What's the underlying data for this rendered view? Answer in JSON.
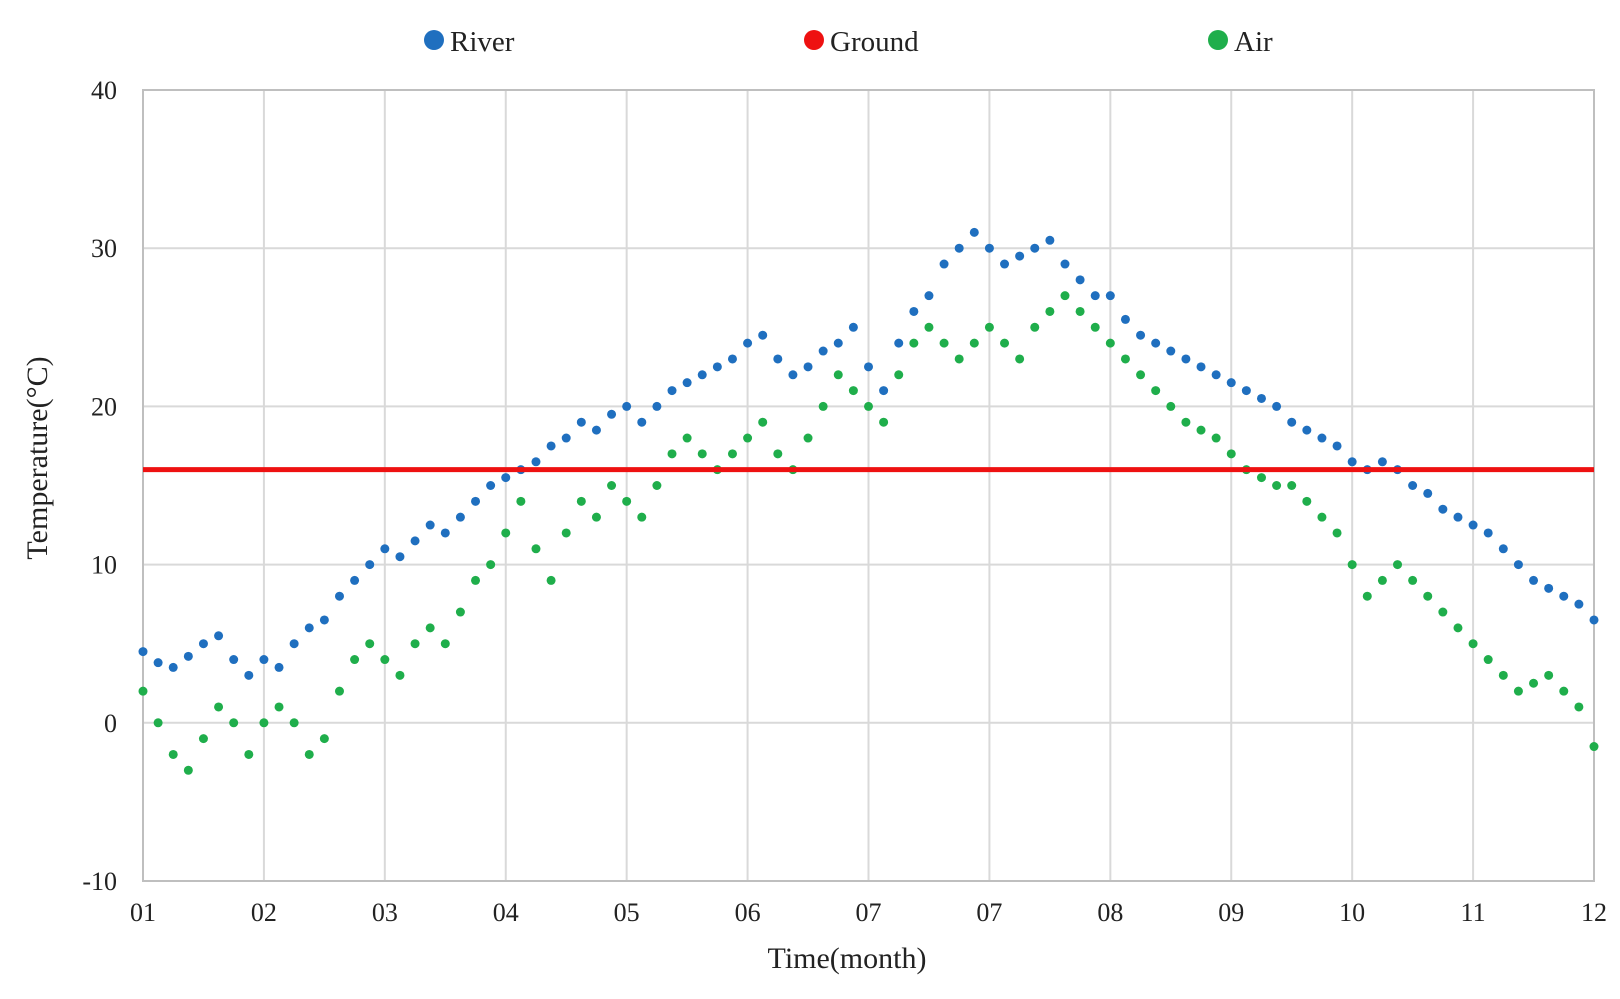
{
  "colors": {
    "river": "#1f6fbf",
    "ground": "#ee1111",
    "air": "#1fae4b",
    "grid": "#d9d9d9",
    "axis": "#bfbfbf"
  },
  "chart_data": {
    "type": "scatter",
    "title": "",
    "xlabel": "Time(month)",
    "ylabel": "Temperature(°C)",
    "xlim": [
      0,
      12
    ],
    "ylim": [
      -10,
      40
    ],
    "grid": true,
    "legend_position": "top-center",
    "x_ticks": [
      {
        "value": 0,
        "label": "01"
      },
      {
        "value": 1,
        "label": "02"
      },
      {
        "value": 2,
        "label": "03"
      },
      {
        "value": 3,
        "label": "04"
      },
      {
        "value": 4,
        "label": "05"
      },
      {
        "value": 5,
        "label": "06"
      },
      {
        "value": 6,
        "label": "07"
      },
      {
        "value": 7,
        "label": "07"
      },
      {
        "value": 8,
        "label": "08"
      },
      {
        "value": 9,
        "label": "09"
      },
      {
        "value": 10,
        "label": "10"
      },
      {
        "value": 11,
        "label": "11"
      },
      {
        "value": 12,
        "label": "12"
      }
    ],
    "y_ticks": [
      {
        "value": 40,
        "label": "40"
      },
      {
        "value": 30,
        "label": "30"
      },
      {
        "value": 20,
        "label": "20"
      },
      {
        "value": 10,
        "label": "10"
      },
      {
        "value": 0,
        "label": "0"
      },
      {
        "value": -10,
        "label": "-10"
      }
    ],
    "series": [
      {
        "name": "River",
        "kind": "points",
        "x": [
          0.0,
          0.125,
          0.25,
          0.375,
          0.5,
          0.625,
          0.75,
          0.875,
          1.0,
          1.125,
          1.25,
          1.375,
          1.5,
          1.625,
          1.75,
          1.875,
          2.0,
          2.125,
          2.25,
          2.375,
          2.5,
          2.625,
          2.75,
          2.875,
          3.0,
          3.125,
          3.25,
          3.375,
          3.5,
          3.625,
          3.75,
          3.875,
          4.0,
          4.125,
          4.25,
          4.375,
          4.5,
          4.625,
          4.75,
          4.875,
          5.0,
          5.125,
          5.25,
          5.375,
          5.5,
          5.625,
          5.75,
          5.875,
          6.0,
          6.125,
          6.25,
          6.375,
          6.5,
          6.625,
          6.75,
          6.875,
          7.0,
          7.125,
          7.25,
          7.375,
          7.5,
          7.625,
          7.75,
          7.875,
          8.0,
          8.125,
          8.25,
          8.375,
          8.5,
          8.625,
          8.75,
          8.875,
          9.0,
          9.125,
          9.25,
          9.375,
          9.5,
          9.625,
          9.75,
          9.875,
          10.0,
          10.125,
          10.25,
          10.375,
          10.5,
          10.625,
          10.75,
          10.875,
          11.0,
          11.125,
          11.25,
          11.375,
          11.5,
          11.625,
          11.75,
          11.875,
          12.0
        ],
        "y": [
          4.5,
          3.8,
          3.5,
          4.2,
          5.0,
          5.5,
          4.0,
          3.0,
          4.0,
          3.5,
          5.0,
          6.0,
          6.5,
          8.0,
          9.0,
          10.0,
          11.0,
          10.5,
          11.5,
          12.5,
          12.0,
          13.0,
          14.0,
          15.0,
          15.5,
          16.0,
          16.5,
          17.5,
          18.0,
          19.0,
          18.5,
          19.5,
          20.0,
          19.0,
          20.0,
          21.0,
          21.5,
          22.0,
          22.5,
          23.0,
          24.0,
          24.5,
          23.0,
          22.0,
          22.5,
          23.5,
          24.0,
          25.0,
          22.5,
          21.0,
          24.0,
          26.0,
          27.0,
          29.0,
          30.0,
          31.0,
          30.0,
          29.0,
          29.5,
          30.0,
          30.5,
          29.0,
          28.0,
          27.0,
          27.0,
          25.5,
          24.5,
          24.0,
          23.5,
          23.0,
          22.5,
          22.0,
          21.5,
          21.0,
          20.5,
          20.0,
          19.0,
          18.5,
          18.0,
          17.5,
          16.5,
          16.0,
          16.5,
          16.0,
          15.0,
          14.5,
          13.5,
          13.0,
          12.5,
          12.0,
          11.0,
          10.0,
          9.0,
          8.5,
          8.0,
          7.5,
          6.5
        ]
      },
      {
        "name": "Ground",
        "kind": "line",
        "value": 16
      },
      {
        "name": "Air",
        "kind": "points",
        "x": [
          0.0,
          0.125,
          0.25,
          0.375,
          0.5,
          0.625,
          0.75,
          0.875,
          1.0,
          1.125,
          1.25,
          1.375,
          1.5,
          1.625,
          1.75,
          1.875,
          2.0,
          2.125,
          2.25,
          2.375,
          2.5,
          2.625,
          2.75,
          2.875,
          3.0,
          3.125,
          3.25,
          3.375,
          3.5,
          3.625,
          3.75,
          3.875,
          4.0,
          4.125,
          4.25,
          4.375,
          4.5,
          4.625,
          4.75,
          4.875,
          5.0,
          5.125,
          5.25,
          5.375,
          5.5,
          5.625,
          5.75,
          5.875,
          6.0,
          6.125,
          6.25,
          6.375,
          6.5,
          6.625,
          6.75,
          6.875,
          7.0,
          7.125,
          7.25,
          7.375,
          7.5,
          7.625,
          7.75,
          7.875,
          8.0,
          8.125,
          8.25,
          8.375,
          8.5,
          8.625,
          8.75,
          8.875,
          9.0,
          9.125,
          9.25,
          9.375,
          9.5,
          9.625,
          9.75,
          9.875,
          10.0,
          10.125,
          10.25,
          10.375,
          10.5,
          10.625,
          10.75,
          10.875,
          11.0,
          11.125,
          11.25,
          11.375,
          11.5,
          11.625,
          11.75,
          11.875,
          12.0
        ],
        "y": [
          2.0,
          0.0,
          -2.0,
          -3.0,
          -1.0,
          1.0,
          0.0,
          -2.0,
          0.0,
          1.0,
          0.0,
          -2.0,
          -1.0,
          2.0,
          4.0,
          5.0,
          4.0,
          3.0,
          5.0,
          6.0,
          5.0,
          7.0,
          9.0,
          10.0,
          12.0,
          14.0,
          11.0,
          9.0,
          12.0,
          14.0,
          13.0,
          15.0,
          14.0,
          13.0,
          15.0,
          17.0,
          18.0,
          17.0,
          16.0,
          17.0,
          18.0,
          19.0,
          17.0,
          16.0,
          18.0,
          20.0,
          22.0,
          21.0,
          20.0,
          19.0,
          22.0,
          24.0,
          25.0,
          24.0,
          23.0,
          24.0,
          25.0,
          24.0,
          23.0,
          25.0,
          26.0,
          27.0,
          26.0,
          25.0,
          24.0,
          23.0,
          22.0,
          21.0,
          20.0,
          19.0,
          18.5,
          18.0,
          17.0,
          16.0,
          15.5,
          15.0,
          15.0,
          14.0,
          13.0,
          12.0,
          10.0,
          8.0,
          9.0,
          10.0,
          9.0,
          8.0,
          7.0,
          6.0,
          5.0,
          4.0,
          3.0,
          2.0,
          2.5,
          3.0,
          2.0,
          1.0,
          -1.5
        ]
      }
    ]
  }
}
